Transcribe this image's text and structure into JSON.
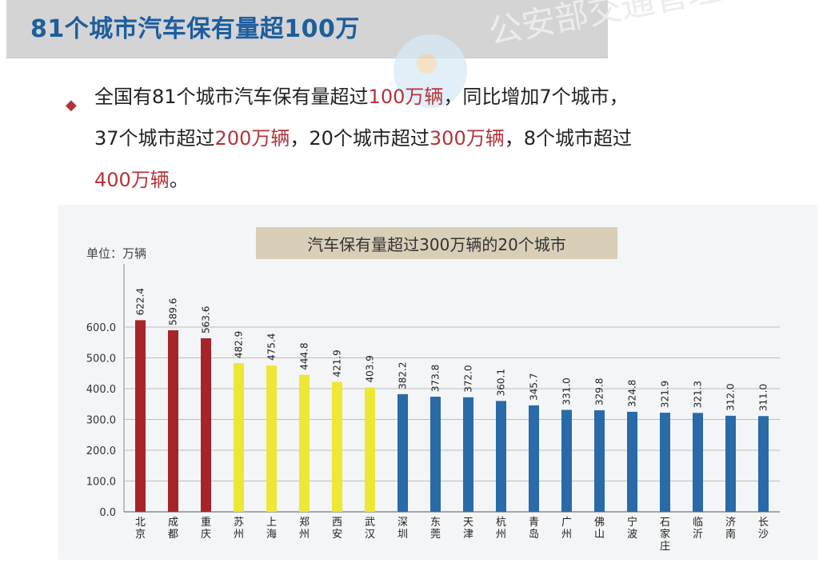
{
  "header": {
    "title": "81个城市汽车保有量超100万",
    "watermark": "公安部交通管理局"
  },
  "bullet": {
    "line1_a": "全国有81个城市汽车保有量超过",
    "line1_hl": "100万辆",
    "line1_b": "，同比增加7个城市，",
    "line2_a": "37个城市超过",
    "line2_hl1": "200万辆",
    "line2_b": "，20个城市超过",
    "line2_hl2": "300万辆",
    "line2_c": "，8个城市超过",
    "line3_hl": "400万辆",
    "line3_b": "。"
  },
  "colors": {
    "title_band": "#d4d4d4",
    "title_text": "#1d5e9e",
    "highlight": "#b3343a",
    "bar_red": "#a8242b",
    "bar_yellow": "#ede736",
    "bar_blue": "#2a6aa8",
    "chart_title_bg": "#d9cfb9"
  },
  "chart_data": {
    "type": "bar",
    "title": "汽车保有量超过300万辆的20个城市",
    "unit": "单位：万辆",
    "categories": [
      "北京",
      "成都",
      "重庆",
      "苏州",
      "上海",
      "郑州",
      "西安",
      "武汉",
      "深圳",
      "东莞",
      "天津",
      "杭州",
      "青岛",
      "广州",
      "佛山",
      "宁波",
      "石家庄",
      "临沂",
      "济南",
      "长沙"
    ],
    "values": [
      622.4,
      589.6,
      563.6,
      482.9,
      475.4,
      444.8,
      421.9,
      403.9,
      382.2,
      373.8,
      372.0,
      360.1,
      345.7,
      331.0,
      329.8,
      324.8,
      321.9,
      321.3,
      312.0,
      311.0
    ],
    "value_labels": [
      "622.4",
      "589.6",
      "563.6",
      "482.9",
      "475.4",
      "444.8",
      "421.9",
      "403.9",
      "382.2",
      "373.8",
      "372.0",
      "360.1",
      "345.7",
      "331.0",
      "329.8",
      "324.8",
      "321.9",
      "321.3",
      "312.0",
      "311.0"
    ],
    "bar_colors": [
      "#a8242b",
      "#a8242b",
      "#a8242b",
      "#ede736",
      "#ede736",
      "#ede736",
      "#ede736",
      "#ede736",
      "#2a6aa8",
      "#2a6aa8",
      "#2a6aa8",
      "#2a6aa8",
      "#2a6aa8",
      "#2a6aa8",
      "#2a6aa8",
      "#2a6aa8",
      "#2a6aa8",
      "#2a6aa8",
      "#2a6aa8",
      "#2a6aa8"
    ],
    "yticks": [
      "0.0",
      "100.0",
      "200.0",
      "300.0",
      "400.0",
      "500.0",
      "600.0"
    ],
    "ylim": [
      0,
      600
    ],
    "grid": true,
    "xlabel": "",
    "ylabel": ""
  }
}
